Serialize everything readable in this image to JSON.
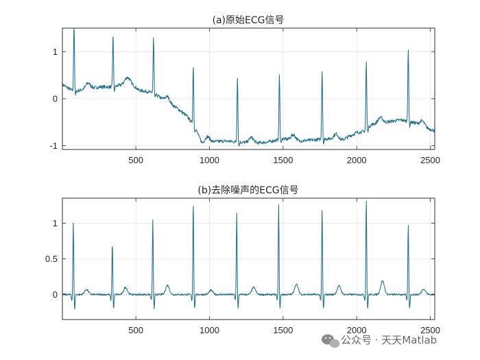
{
  "chart_data": [
    {
      "type": "line",
      "title": "(a)原始ECG信号",
      "xlabel": "",
      "ylabel": "",
      "xlim": [
        1,
        2530
      ],
      "ylim": [
        -1.08,
        1.5
      ],
      "xticks": [
        500,
        1000,
        1500,
        2000,
        2500
      ],
      "yticks": [
        -1,
        0,
        1
      ],
      "grid": true,
      "series": [
        {
          "color": "#1f6f8b",
          "x": [
            1,
            80,
            150,
            260,
            340,
            410,
            460,
            520,
            580,
            620,
            700,
            780,
            850,
            900,
            950,
            1000,
            1100,
            1200,
            1300,
            1400,
            1500,
            1600,
            1700,
            1800,
            1900,
            2000,
            2050,
            2100,
            2200,
            2300,
            2400,
            2450,
            2530
          ],
          "y": [
            0.3,
            0.15,
            0.2,
            0.25,
            0.25,
            0.3,
            0.35,
            0.18,
            0.15,
            0.12,
            -0.05,
            -0.2,
            -0.38,
            -0.6,
            -0.95,
            -0.92,
            -0.9,
            -0.92,
            -0.95,
            -0.92,
            -0.85,
            -0.9,
            -0.88,
            -0.85,
            -0.88,
            -0.72,
            -0.7,
            -0.55,
            -0.5,
            -0.45,
            -0.52,
            -0.6,
            -0.68
          ],
          "peaks": [
            {
              "x": 80,
              "y": 1.6
            },
            {
              "x": 345,
              "y": 1.38
            },
            {
              "x": 620,
              "y": 1.3
            },
            {
              "x": 890,
              "y": 0.7
            },
            {
              "x": 1190,
              "y": 0.48
            },
            {
              "x": 1475,
              "y": 0.52
            },
            {
              "x": 1765,
              "y": 0.62
            },
            {
              "x": 2065,
              "y": 0.8
            },
            {
              "x": 2350,
              "y": 1.08
            }
          ]
        }
      ]
    },
    {
      "type": "line",
      "title": "(b)去除噪声的ECG信号",
      "xlabel": "",
      "ylabel": "",
      "xlim": [
        1,
        2530
      ],
      "ylim": [
        -0.35,
        1.35
      ],
      "xticks": [
        500,
        1000,
        1500,
        2000,
        2500
      ],
      "yticks": [
        0,
        0.5,
        1
      ],
      "grid": true,
      "series": [
        {
          "color": "#1f6f8b",
          "baseline": 0,
          "peaks": [
            {
              "x": 75,
              "y": 1.02
            },
            {
              "x": 340,
              "y": 0.73
            },
            {
              "x": 615,
              "y": 1.06
            },
            {
              "x": 890,
              "y": 1.3
            },
            {
              "x": 1185,
              "y": 1.15
            },
            {
              "x": 1470,
              "y": 1.25
            },
            {
              "x": 1765,
              "y": 1.21
            },
            {
              "x": 2065,
              "y": 1.35
            },
            {
              "x": 2350,
              "y": 1.0
            }
          ],
          "twaves": [
            {
              "x": 165,
              "y": 0.07
            },
            {
              "x": 430,
              "y": 0.1
            },
            {
              "x": 715,
              "y": 0.13
            },
            {
              "x": 1010,
              "y": 0.06
            },
            {
              "x": 1300,
              "y": 0.1
            },
            {
              "x": 1590,
              "y": 0.14
            },
            {
              "x": 1880,
              "y": 0.12
            },
            {
              "x": 2175,
              "y": 0.19
            },
            {
              "x": 2455,
              "y": 0.08
            }
          ]
        }
      ]
    }
  ],
  "watermark": {
    "text": "公众号 · 天天Matlab",
    "icon": "wechat-icon"
  }
}
